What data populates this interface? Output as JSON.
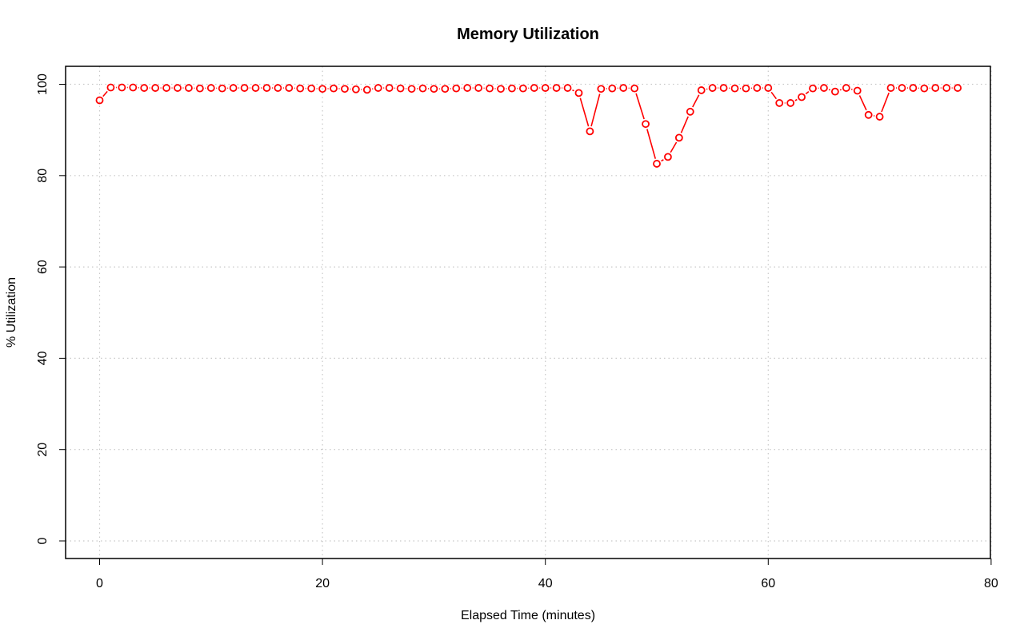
{
  "chart_data": {
    "type": "line",
    "title": "Memory Utilization",
    "xlabel": "Elapsed Time (minutes)",
    "ylabel": "% Utilization",
    "xlim": [
      0,
      80
    ],
    "ylim": [
      0,
      100
    ],
    "x_ticks": [
      0,
      20,
      40,
      60,
      80
    ],
    "y_ticks": [
      0,
      20,
      40,
      60,
      80,
      100
    ],
    "grid": true,
    "series": [
      {
        "color": "#ff0000",
        "marker": "open-circle",
        "x": [
          0,
          1,
          2,
          3,
          4,
          5,
          6,
          7,
          8,
          9,
          10,
          11,
          12,
          13,
          14,
          15,
          16,
          17,
          18,
          19,
          20,
          21,
          22,
          23,
          24,
          25,
          26,
          27,
          28,
          29,
          30,
          31,
          32,
          33,
          34,
          35,
          36,
          37,
          38,
          39,
          40,
          41,
          42,
          43,
          44,
          45,
          46,
          47,
          48,
          49,
          50,
          51,
          52,
          53,
          54,
          55,
          56,
          57,
          58,
          59,
          60,
          61,
          62,
          63,
          64,
          65,
          66,
          67,
          68,
          69,
          70,
          71,
          72,
          73,
          74,
          75,
          76,
          77
        ],
        "values": [
          96.5,
          99.3,
          99.3,
          99.3,
          99.2,
          99.2,
          99.2,
          99.2,
          99.2,
          99.1,
          99.2,
          99.1,
          99.2,
          99.2,
          99.2,
          99.2,
          99.2,
          99.2,
          99.1,
          99.1,
          99.0,
          99.1,
          99.0,
          98.9,
          98.8,
          99.2,
          99.2,
          99.1,
          99.0,
          99.1,
          99.0,
          99.0,
          99.1,
          99.2,
          99.2,
          99.1,
          99.0,
          99.1,
          99.1,
          99.2,
          99.2,
          99.2,
          99.2,
          98.1,
          89.7,
          99.0,
          99.1,
          99.2,
          99.1,
          91.3,
          82.6,
          84.1,
          88.3,
          94.0,
          98.7,
          99.2,
          99.2,
          99.1,
          99.1,
          99.2,
          99.2,
          95.9,
          95.9,
          97.2,
          99.1,
          99.2,
          98.4,
          99.2,
          98.6,
          93.3,
          92.9,
          99.2,
          99.2,
          99.2,
          99.1,
          99.2,
          99.2,
          99.2
        ]
      }
    ]
  }
}
